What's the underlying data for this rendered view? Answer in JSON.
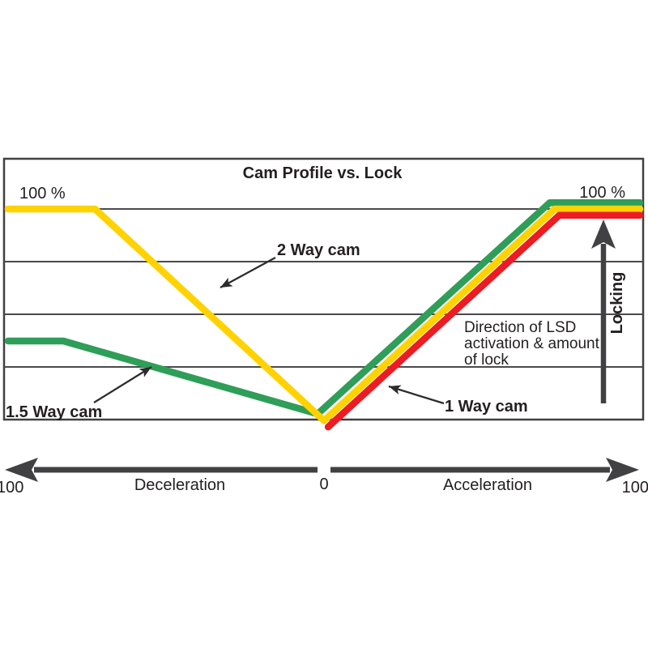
{
  "chart_data": {
    "type": "line",
    "title": "Cam Profile vs. Lock",
    "y_axis": {
      "unit": "% lock",
      "range": [
        0,
        100
      ],
      "gridlines_pct": [
        100,
        75,
        50,
        25
      ],
      "label_top_left": "100 %",
      "label_top_right": "100 %"
    },
    "x_axis": {
      "range": [
        -100,
        100
      ],
      "left_end_label": "100",
      "center_label": "0",
      "right_end_label": "100",
      "left_region_label": "Deceleration",
      "right_region_label": "Acceleration"
    },
    "series": [
      {
        "name": "1.5 Way cam",
        "color": "#2f9e58",
        "points": [
          [
            -100,
            37.3
          ],
          [
            -82.5,
            37.3
          ],
          [
            -2,
            2.7
          ],
          [
            71.5,
            103
          ],
          [
            100,
            103
          ]
        ]
      },
      {
        "name": "2 Way cam",
        "color": "#ffd200",
        "points": [
          [
            -100,
            100
          ],
          [
            -72.5,
            100
          ],
          [
            0,
            -0.5
          ],
          [
            73,
            100
          ],
          [
            100,
            100
          ]
        ]
      },
      {
        "name": "1 Way cam",
        "color": "#ec1b24",
        "points": [
          [
            1.3,
            -3.5
          ],
          [
            74.5,
            97
          ],
          [
            100,
            97
          ]
        ]
      }
    ],
    "annotations": {
      "locking_arrow_label": "Locking",
      "direction_note_lines": [
        "Direction of LSD",
        "activation & amount",
        "of lock"
      ]
    },
    "colors": {
      "yellow_line": "#ffd200",
      "green_line": "#2f9e58",
      "red_line": "#ec1b24",
      "axis_arrow": "#414042",
      "gridline": "#4a4a4c",
      "text": "#231f20"
    }
  }
}
